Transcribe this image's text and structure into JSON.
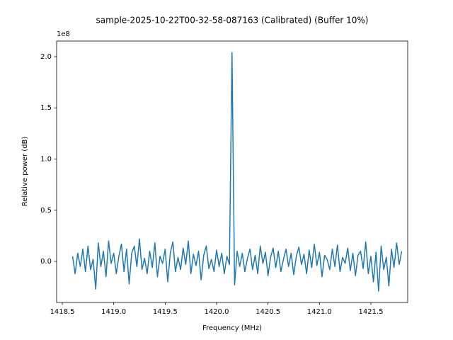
{
  "chart_data": {
    "type": "line",
    "title": "sample-2025-10-22T00-32-58-087163 (Calibrated) (Buffer 10%)",
    "x_label": "Frequency (MHz)",
    "y_label": "Relative power (dB)",
    "y_offset_label": "1e8",
    "color": "#1f77b4",
    "xlim": [
      1418.445,
      1421.858
    ],
    "ylim": [
      -0.401,
      2.152
    ],
    "xticks": [
      1418.5,
      {
        "value": 1419,
        "label": "1419.0"
      },
      1419.5,
      {
        "value": 1420,
        "label": "1420.0"
      },
      1420.5,
      {
        "value": 1421,
        "label": "1421.0"
      },
      1421.5
    ],
    "yticks": [
      {
        "value": 0,
        "label": "0.0"
      },
      0.5,
      {
        "value": 1,
        "label": "1.0"
      },
      1.5,
      {
        "value": 2,
        "label": "2.0"
      }
    ],
    "x": [
      1418.6,
      1418.625,
      1418.65,
      1418.675,
      1418.7,
      1418.725,
      1418.75,
      1418.775,
      1418.8,
      1418.825,
      1418.85,
      1418.875,
      1418.9,
      1418.925,
      1418.95,
      1418.975,
      1419.0,
      1419.025,
      1419.05,
      1419.075,
      1419.1,
      1419.125,
      1419.15,
      1419.175,
      1419.2,
      1419.225,
      1419.25,
      1419.275,
      1419.3,
      1419.325,
      1419.35,
      1419.375,
      1419.4,
      1419.425,
      1419.45,
      1419.475,
      1419.5,
      1419.525,
      1419.55,
      1419.575,
      1419.6,
      1419.625,
      1419.65,
      1419.675,
      1419.7,
      1419.725,
      1419.75,
      1419.775,
      1419.8,
      1419.825,
      1419.85,
      1419.875,
      1419.9,
      1419.925,
      1419.95,
      1419.975,
      1420.0,
      1420.025,
      1420.05,
      1420.075,
      1420.1,
      1420.125,
      1420.15,
      1420.175,
      1420.2,
      1420.225,
      1420.25,
      1420.275,
      1420.3,
      1420.325,
      1420.35,
      1420.375,
      1420.4,
      1420.425,
      1420.45,
      1420.475,
      1420.5,
      1420.525,
      1420.55,
      1420.575,
      1420.6,
      1420.625,
      1420.65,
      1420.675,
      1420.7,
      1420.725,
      1420.75,
      1420.775,
      1420.8,
      1420.825,
      1420.85,
      1420.875,
      1420.9,
      1420.925,
      1420.95,
      1420.975,
      1421.0,
      1421.025,
      1421.05,
      1421.075,
      1421.1,
      1421.125,
      1421.15,
      1421.175,
      1421.2,
      1421.225,
      1421.25,
      1421.275,
      1421.3,
      1421.325,
      1421.35,
      1421.375,
      1421.4,
      1421.425,
      1421.45,
      1421.475,
      1421.5,
      1421.525,
      1421.55,
      1421.575,
      1421.6,
      1421.625,
      1421.65,
      1421.675,
      1421.7,
      1421.725,
      1421.75,
      1421.775,
      1421.8
    ],
    "values": [
      0.05,
      -0.12,
      0.08,
      -0.05,
      0.12,
      -0.1,
      0.15,
      -0.08,
      0.02,
      -0.27,
      0.18,
      -0.05,
      0.1,
      -0.15,
      0.2,
      -0.02,
      0.08,
      -0.12,
      0.05,
      0.17,
      -0.1,
      0.12,
      -0.22,
      0.08,
      0.15,
      -0.05,
      0.22,
      -0.08,
      0.03,
      -0.12,
      0.1,
      -0.06,
      0.18,
      -0.15,
      0.05,
      -0.02,
      0.12,
      -0.2,
      0.08,
      0.19,
      -0.1,
      0.04,
      -0.08,
      0.13,
      -0.03,
      0.2,
      -0.12,
      0.07,
      -0.04,
      0.1,
      -0.18,
      0.06,
      0.15,
      -0.07,
      0.02,
      -0.1,
      0.11,
      -0.05,
      0.08,
      -0.12,
      0.05,
      -0.03,
      2.04,
      -0.23,
      0.1,
      -0.05,
      0.08,
      -0.1,
      0.03,
      0.12,
      -0.08,
      0.06,
      -0.12,
      0.15,
      -0.02,
      0.09,
      -0.14,
      0.04,
      0.13,
      -0.06,
      0.1,
      -0.1,
      0.02,
      0.12,
      -0.05,
      0.08,
      -0.13,
      0.05,
      0.14,
      -0.03,
      0.07,
      -0.12,
      0.11,
      -0.06,
      0.17,
      -0.04,
      0.09,
      -0.15,
      0.06,
      0.02,
      -0.08,
      0.12,
      -0.05,
      0.16,
      -0.1,
      0.04,
      -0.02,
      0.13,
      -0.09,
      0.08,
      -0.14,
      0.06,
      0.1,
      -0.07,
      0.19,
      -0.12,
      0.05,
      -0.2,
      0.09,
      -0.29,
      0.15,
      -0.08,
      0.04,
      -0.24,
      0.12,
      -0.06,
      0.18,
      -0.03,
      0.1
    ]
  }
}
